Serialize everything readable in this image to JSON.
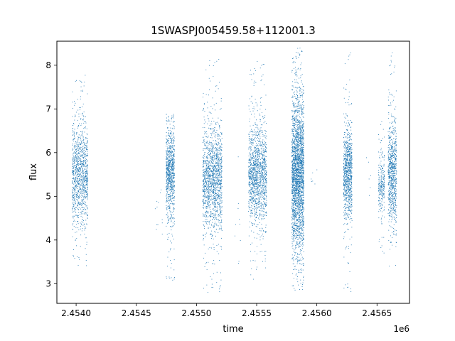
{
  "chart_data": {
    "type": "scatter",
    "title": "1SWASPJ005459.58+112001.3",
    "xlabel": "time",
    "ylabel": "flux",
    "x_offset_label": "1e6",
    "x_scale": 1000000,
    "xlim": [
      2.45384,
      2.45677
    ],
    "ylim": [
      2.55,
      8.55
    ],
    "x_ticks": [
      2.454,
      2.4545,
      2.455,
      2.4555,
      2.456,
      2.4565
    ],
    "x_tick_labels": [
      "2.4540",
      "2.4545",
      "2.4550",
      "2.4555",
      "2.4560",
      "2.4565"
    ],
    "y_ticks": [
      3,
      4,
      5,
      6,
      7,
      8
    ],
    "y_tick_labels": [
      "3",
      "4",
      "5",
      "6",
      "7",
      "8"
    ],
    "grid": false,
    "legend": false,
    "marker_color": "#1f77b4",
    "clusters": [
      {
        "x_start": 2.453965,
        "x_end": 2.454095,
        "y_center": 5.5,
        "y_low": 4.6,
        "y_high": 6.4,
        "y_min": 3.4,
        "y_max": 7.8,
        "density": 1100
      },
      {
        "x_start": 2.454745,
        "x_end": 2.454815,
        "y_center": 5.6,
        "y_low": 4.8,
        "y_high": 6.4,
        "y_min": 2.95,
        "y_max": 6.9,
        "density": 850
      },
      {
        "x_start": 2.45505,
        "x_end": 2.45521,
        "y_center": 5.4,
        "y_low": 4.5,
        "y_high": 6.3,
        "y_min": 2.8,
        "y_max": 8.2,
        "density": 1500
      },
      {
        "x_start": 2.45543,
        "x_end": 2.45558,
        "y_center": 5.5,
        "y_low": 4.6,
        "y_high": 6.3,
        "y_min": 3.1,
        "y_max": 8.1,
        "density": 1400
      },
      {
        "x_start": 2.45579,
        "x_end": 2.45589,
        "y_center": 5.5,
        "y_low": 4.2,
        "y_high": 6.9,
        "y_min": 2.85,
        "y_max": 8.4,
        "density": 2600
      },
      {
        "x_start": 2.45622,
        "x_end": 2.45629,
        "y_center": 5.5,
        "y_low": 4.7,
        "y_high": 6.3,
        "y_min": 2.8,
        "y_max": 8.35,
        "density": 900
      },
      {
        "x_start": 2.45651,
        "x_end": 2.45656,
        "y_center": 5.3,
        "y_low": 4.8,
        "y_high": 5.9,
        "y_min": 3.6,
        "y_max": 7.0,
        "density": 250
      },
      {
        "x_start": 2.45659,
        "x_end": 2.45666,
        "y_center": 5.5,
        "y_low": 4.6,
        "y_high": 6.4,
        "y_min": 3.3,
        "y_max": 8.3,
        "density": 800
      }
    ]
  }
}
